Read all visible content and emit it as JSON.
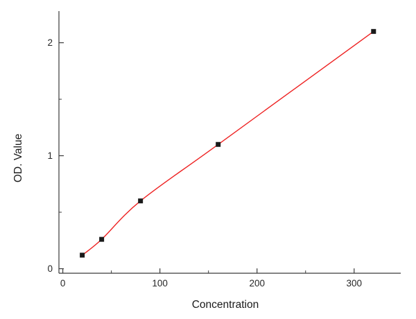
{
  "chart_data": {
    "type": "scatter",
    "title": "",
    "xlabel": "Concentration",
    "ylabel": "OD. Value",
    "x": [
      20,
      40,
      80,
      160,
      320
    ],
    "y": [
      0.12,
      0.26,
      0.6,
      1.1,
      2.1
    ],
    "fit_curve": true,
    "xlim": [
      -4,
      348
    ],
    "ylim": [
      -0.04,
      2.28
    ],
    "x_ticks": [
      0,
      100,
      200,
      300
    ],
    "y_ticks": [
      0,
      1,
      2
    ],
    "x_minor_step": 50,
    "y_minor_step": 0.5,
    "grid": false,
    "legend": "none",
    "line_color": "#ee2222",
    "marker_color": "#1a1a1a",
    "axis_color": "#3a3a3a",
    "tick_label_color": "#262626",
    "axis_label_color": "#1a1a1a"
  }
}
